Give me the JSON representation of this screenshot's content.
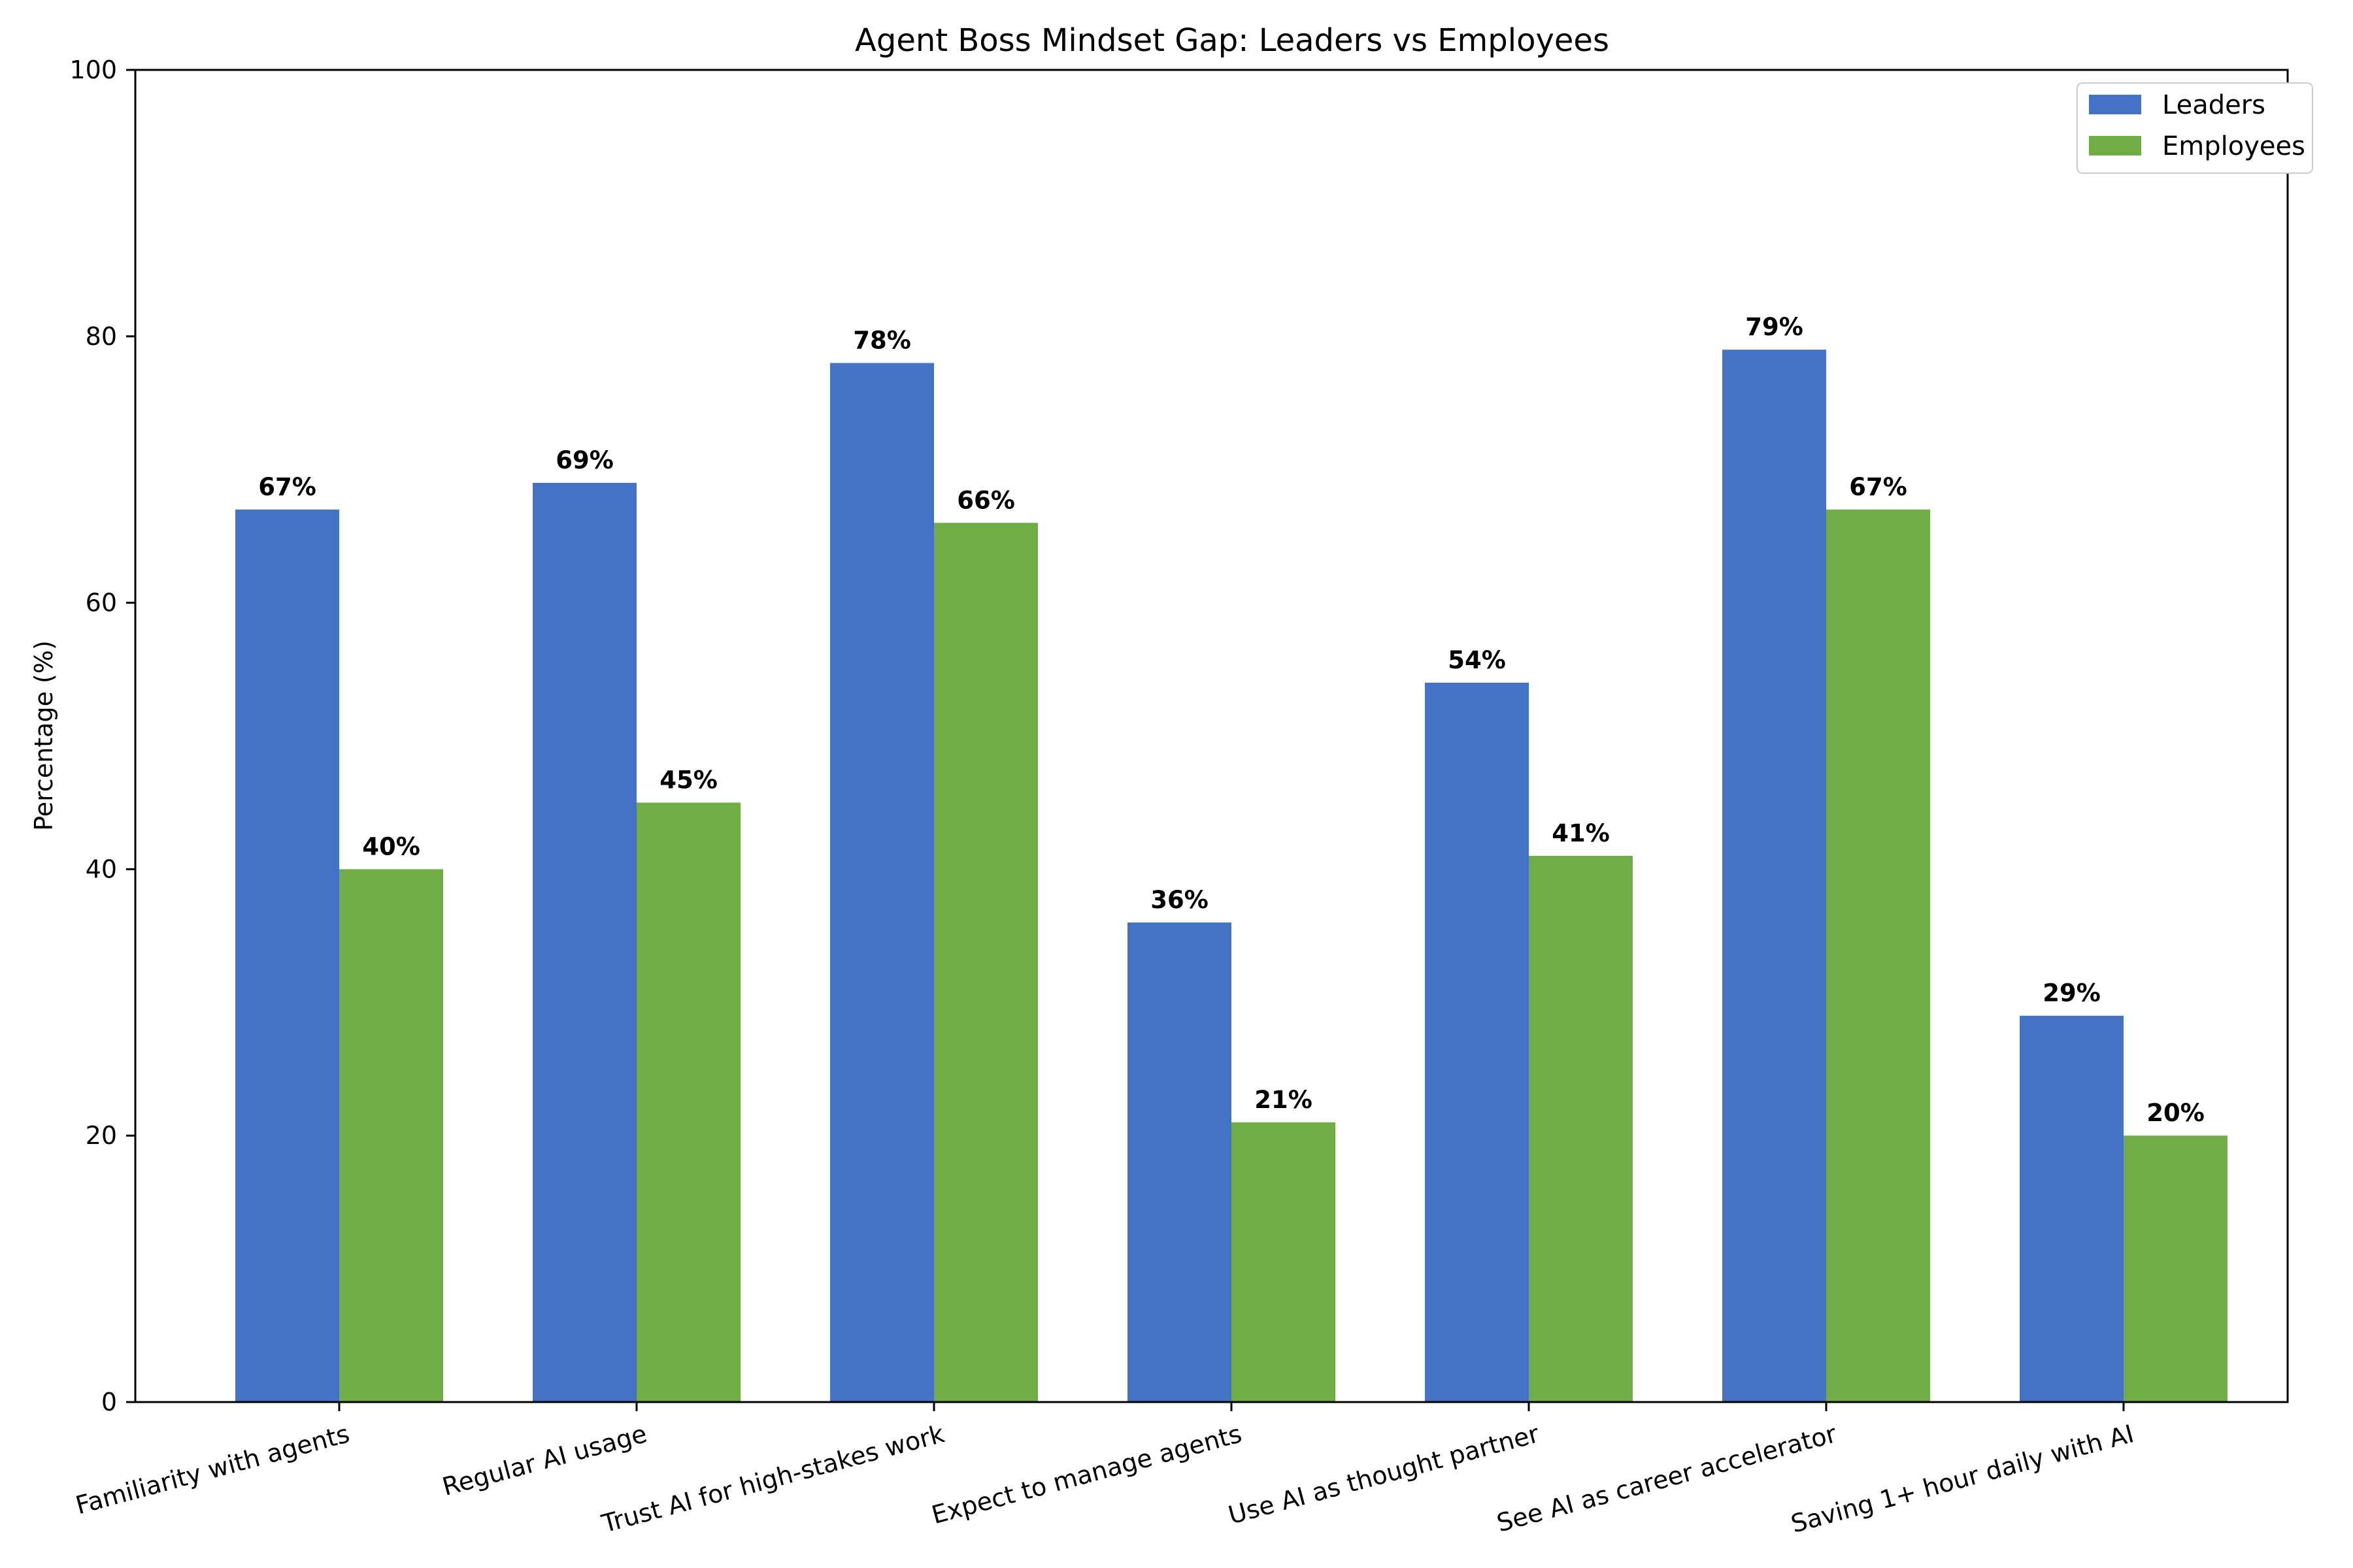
{
  "chart_data": {
    "type": "bar",
    "title": "Agent Boss Mindset Gap: Leaders vs Employees",
    "xlabel": "",
    "ylabel": "Percentage (%)",
    "ylim": [
      0,
      100
    ],
    "yticks": [
      0,
      20,
      40,
      60,
      80,
      100
    ],
    "grid": false,
    "legend_position": "top-right",
    "categories": [
      "Familiarity with agents",
      "Regular AI usage",
      "Trust AI for high-stakes work",
      "Expect to manage agents",
      "Use AI as thought partner",
      "See AI as career accelerator",
      "Saving 1+ hour daily with AI"
    ],
    "series": [
      {
        "name": "Leaders",
        "color": "#4472C4",
        "values": [
          67,
          69,
          78,
          36,
          54,
          79,
          29
        ]
      },
      {
        "name": "Employees",
        "color": "#70AD47",
        "values": [
          40,
          45,
          66,
          21,
          41,
          67,
          20
        ]
      }
    ],
    "value_label_suffix": "%"
  }
}
